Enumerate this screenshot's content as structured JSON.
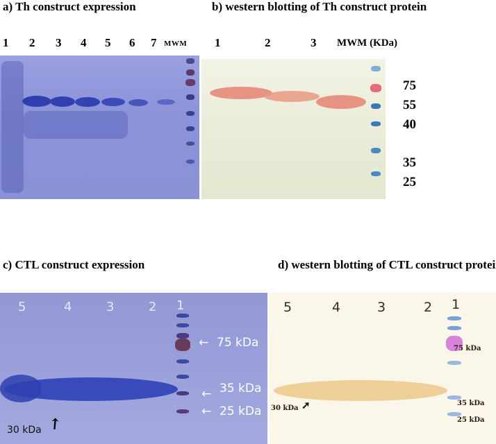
{
  "panels": {
    "a": {
      "title": "a) Th construct expression",
      "lanes": [
        "1",
        "2",
        "3",
        "4",
        "5",
        "6",
        "7"
      ],
      "mwm": "MWM"
    },
    "b": {
      "title": "b) western blotting of Th construct protein",
      "lanes": [
        "1",
        "2",
        "3"
      ],
      "mwm": "MWM (KDa)",
      "markers": [
        "75",
        "55",
        "40",
        "35",
        "25"
      ]
    },
    "c": {
      "title": "c) CTL construct expression",
      "lanes": [
        "5",
        "4",
        "3",
        "2",
        "1"
      ],
      "markers": [
        "75 kDa",
        "35 kDa",
        "25 kDa"
      ],
      "band_label": "30 kDa"
    },
    "d": {
      "title": "d) western blotting of CTL construct protein",
      "lanes": [
        "5",
        "4",
        "3",
        "2",
        "1"
      ],
      "markers": [
        "75 kDa",
        "35 kDa",
        "25 kDa"
      ],
      "band_label": "30 kDa"
    }
  },
  "colors": {
    "coomassie_bg": "#8c93d8",
    "coomassie_band": "#2f3fae",
    "blot_b_bg": "#eef0dc",
    "blot_b_band": "#e58a7a",
    "blot_d_bg": "#fbf6ea",
    "blot_d_band": "#e8c27a"
  }
}
